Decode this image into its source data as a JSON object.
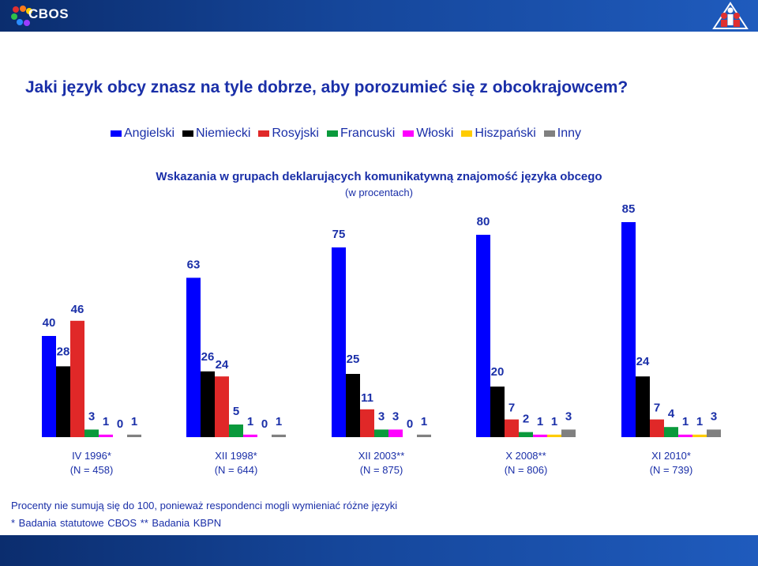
{
  "header": {
    "logo_text": "CBOS"
  },
  "main_title": "Jaki język obcy znasz na tyle dobrze, aby porozumieć się z obcokrajowcem?",
  "chart_data": {
    "type": "bar",
    "title": "Wskazania w grupach deklarujących komunikatywną znajomość języka obcego",
    "subtitle": "(w procentach)",
    "categories": [
      [
        "IV 1996*",
        "(N = 458)"
      ],
      [
        "XII 1998*",
        "(N = 644)"
      ],
      [
        "XII 2003**",
        "(N = 875)"
      ],
      [
        "X 2008**",
        "(N = 806)"
      ],
      [
        "XI 2010*",
        "(N = 739)"
      ]
    ],
    "series": [
      {
        "name": "Angielski",
        "color": "#0000ff",
        "values": [
          40,
          63,
          75,
          80,
          85
        ]
      },
      {
        "name": "Niemiecki",
        "color": "#000000",
        "values": [
          28,
          26,
          25,
          20,
          24
        ]
      },
      {
        "name": "Rosyjski",
        "color": "#e02828",
        "values": [
          46,
          24,
          11,
          7,
          7
        ]
      },
      {
        "name": "Francuski",
        "color": "#0a9a3c",
        "values": [
          3,
          5,
          3,
          2,
          4
        ]
      },
      {
        "name": "Włoski",
        "color": "#ff00ff",
        "values": [
          1,
          1,
          3,
          1,
          1
        ]
      },
      {
        "name": "Hiszpański",
        "color": "#ffcc00",
        "values": [
          0,
          0,
          0,
          1,
          1
        ]
      },
      {
        "name": "Inny",
        "color": "#808080",
        "values": [
          1,
          1,
          1,
          3,
          3
        ]
      }
    ],
    "legend_position": "top",
    "grid": false
  },
  "footnotes": {
    "note": "Procenty nie sumują się do 100, ponieważ respondenci mogli wymieniać różne języki",
    "sources": "* Badania statutowe CBOS    ** Badania KBPN"
  }
}
